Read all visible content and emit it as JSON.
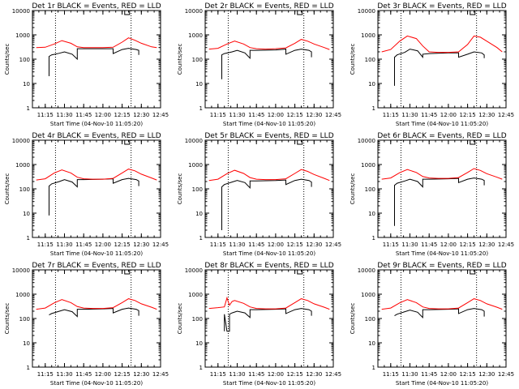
{
  "figure": {
    "colors": {
      "events": "#000000",
      "lld": "#ff0000",
      "axes": "#000000",
      "background": "#ffffff"
    }
  },
  "chart_data": [
    {
      "type": "line",
      "title": "Det 1r BLACK = Events, RED = LLD",
      "xlabel": "Start Time (04-Nov-10 11:05:20)",
      "ylabel": "Counts/sec",
      "y_scale": "log",
      "ylim": [
        1,
        10000
      ],
      "x_ticks": [
        "11:15",
        "11:30",
        "11:45",
        "12:00",
        "12:15",
        "12:30",
        "12:45"
      ],
      "y_ticks": [
        "1",
        "10",
        "100",
        "1000",
        "10000"
      ],
      "vlines": [
        "11:23",
        "12:22"
      ],
      "series": [
        {
          "name": "Events",
          "x": [
            "11:18",
            "11:18",
            "11:20",
            "11:26",
            "11:30",
            "11:36",
            "11:40",
            "11:40",
            "11:45",
            "12:00",
            "12:08",
            "12:08",
            "12:15",
            "12:20",
            "12:26",
            "12:28",
            "12:28"
          ],
          "y": [
            20,
            130,
            150,
            175,
            200,
            160,
            100,
            270,
            270,
            270,
            270,
            170,
            250,
            280,
            250,
            230,
            150
          ]
        },
        {
          "name": "LLD",
          "x": [
            "11:08",
            "11:15",
            "11:22",
            "11:28",
            "11:35",
            "11:40",
            "11:45",
            "11:52",
            "12:00",
            "12:08",
            "12:15",
            "12:20",
            "12:25",
            "12:30",
            "12:38",
            "12:42"
          ],
          "y": [
            300,
            310,
            420,
            580,
            450,
            320,
            300,
            300,
            300,
            310,
            500,
            750,
            600,
            450,
            320,
            300
          ]
        }
      ]
    },
    {
      "type": "line",
      "title": "Det 2r BLACK = Events, RED = LLD",
      "xlabel": "Start Time (04-Nov-10 11:05:20)",
      "ylabel": "Counts/sec",
      "y_scale": "log",
      "ylim": [
        1,
        10000
      ],
      "x_ticks": [
        "11:15",
        "11:30",
        "11:45",
        "12:00",
        "12:15",
        "12:30",
        "12:45"
      ],
      "y_ticks": [
        "1",
        "10",
        "100",
        "1000",
        "10000"
      ],
      "vlines": [
        "11:23",
        "12:22"
      ],
      "series": [
        {
          "name": "Events",
          "x": [
            "11:18",
            "11:18",
            "11:20",
            "11:26",
            "11:30",
            "11:36",
            "11:40",
            "11:40",
            "11:45",
            "12:00",
            "12:08",
            "12:08",
            "12:15",
            "12:20",
            "12:26",
            "12:28",
            "12:28"
          ],
          "y": [
            15,
            150,
            170,
            200,
            230,
            180,
            110,
            230,
            230,
            240,
            260,
            160,
            230,
            260,
            230,
            200,
            120
          ]
        },
        {
          "name": "LLD",
          "x": [
            "11:08",
            "11:15",
            "11:22",
            "11:28",
            "11:35",
            "11:40",
            "11:45",
            "11:52",
            "12:00",
            "12:08",
            "12:15",
            "12:20",
            "12:25",
            "12:30",
            "12:38",
            "12:42"
          ],
          "y": [
            260,
            280,
            420,
            560,
            420,
            300,
            270,
            260,
            270,
            290,
            450,
            650,
            550,
            420,
            300,
            250
          ]
        }
      ]
    },
    {
      "type": "line",
      "title": "Det 3r BLACK = Events, RED = LLD",
      "xlabel": "Start Time (04-Nov-10 11:05:20)",
      "ylabel": "Counts/sec",
      "y_scale": "log",
      "ylim": [
        1,
        10000
      ],
      "x_ticks": [
        "11:15",
        "11:30",
        "11:45",
        "12:00",
        "12:15",
        "12:30",
        "12:45"
      ],
      "y_ticks": [
        "1",
        "10",
        "100",
        "1000",
        "10000"
      ],
      "vlines": [
        "11:23",
        "12:22"
      ],
      "series": [
        {
          "name": "Events",
          "x": [
            "11:18",
            "11:18",
            "11:20",
            "11:26",
            "11:30",
            "11:36",
            "11:40",
            "11:40",
            "11:45",
            "12:00",
            "12:08",
            "12:08",
            "12:15",
            "12:20",
            "12:26",
            "12:28",
            "12:28"
          ],
          "y": [
            8,
            120,
            150,
            190,
            260,
            220,
            120,
            160,
            170,
            180,
            180,
            120,
            160,
            200,
            180,
            150,
            110
          ]
        },
        {
          "name": "LLD",
          "x": [
            "11:08",
            "11:15",
            "11:22",
            "11:28",
            "11:35",
            "11:40",
            "11:45",
            "11:52",
            "12:00",
            "12:08",
            "12:15",
            "12:20",
            "12:25",
            "12:30",
            "12:38",
            "12:42"
          ],
          "y": [
            200,
            250,
            550,
            900,
            700,
            350,
            200,
            190,
            190,
            200,
            400,
            900,
            800,
            550,
            300,
            200
          ]
        }
      ]
    },
    {
      "type": "line",
      "title": "Det 4r BLACK = Events, RED = LLD",
      "xlabel": "Start Time (04-Nov-10 11:05:20)",
      "ylabel": "Counts/sec",
      "y_scale": "log",
      "ylim": [
        1,
        10000
      ],
      "x_ticks": [
        "11:15",
        "11:30",
        "11:45",
        "12:00",
        "12:15",
        "12:30",
        "12:45"
      ],
      "y_ticks": [
        "1",
        "10",
        "100",
        "1000",
        "10000"
      ],
      "vlines": [
        "11:23",
        "12:22"
      ],
      "series": [
        {
          "name": "Events",
          "x": [
            "11:18",
            "11:18",
            "11:20",
            "11:26",
            "11:30",
            "11:36",
            "11:40",
            "11:40",
            "11:45",
            "12:00",
            "12:08",
            "12:08",
            "12:15",
            "12:20",
            "12:26",
            "12:28",
            "12:28"
          ],
          "y": [
            8,
            130,
            160,
            200,
            240,
            190,
            120,
            240,
            240,
            250,
            260,
            170,
            240,
            270,
            240,
            210,
            130
          ]
        },
        {
          "name": "LLD",
          "x": [
            "11:08",
            "11:15",
            "11:22",
            "11:28",
            "11:35",
            "11:40",
            "11:45",
            "11:52",
            "12:00",
            "12:08",
            "12:15",
            "12:20",
            "12:25",
            "12:30",
            "12:38",
            "12:42"
          ],
          "y": [
            230,
            260,
            450,
            600,
            450,
            300,
            260,
            250,
            250,
            270,
            450,
            650,
            550,
            400,
            280,
            230
          ]
        }
      ]
    },
    {
      "type": "line",
      "title": "Det 5r BLACK = Events, RED = LLD",
      "xlabel": "Start Time (04-Nov-10 11:05:20)",
      "ylabel": "Counts/sec",
      "y_scale": "log",
      "ylim": [
        1,
        10000
      ],
      "x_ticks": [
        "11:15",
        "11:30",
        "11:45",
        "12:00",
        "12:15",
        "12:30",
        "12:45"
      ],
      "y_ticks": [
        "1",
        "10",
        "100",
        "1000",
        "10000"
      ],
      "vlines": [
        "11:23",
        "12:22"
      ],
      "series": [
        {
          "name": "Events",
          "x": [
            "11:18",
            "11:18",
            "11:20",
            "11:26",
            "11:30",
            "11:36",
            "11:40",
            "11:40",
            "11:45",
            "12:00",
            "12:08",
            "12:08",
            "12:15",
            "12:20",
            "12:26",
            "12:28",
            "12:28"
          ],
          "y": [
            2,
            120,
            150,
            190,
            220,
            180,
            110,
            210,
            210,
            220,
            230,
            150,
            220,
            250,
            220,
            190,
            120
          ]
        },
        {
          "name": "LLD",
          "x": [
            "11:08",
            "11:15",
            "11:22",
            "11:28",
            "11:35",
            "11:40",
            "11:45",
            "11:52",
            "12:00",
            "12:08",
            "12:15",
            "12:20",
            "12:25",
            "12:30",
            "12:38",
            "12:42"
          ],
          "y": [
            220,
            250,
            420,
            580,
            430,
            290,
            250,
            240,
            240,
            260,
            430,
            620,
            520,
            390,
            270,
            220
          ]
        }
      ]
    },
    {
      "type": "line",
      "title": "Det 6r BLACK = Events, RED = LLD",
      "xlabel": "Start Time (04-Nov-10 11:05:20)",
      "ylabel": "Counts/sec",
      "y_scale": "log",
      "ylim": [
        1,
        10000
      ],
      "x_ticks": [
        "11:15",
        "11:30",
        "11:45",
        "12:00",
        "12:15",
        "12:30",
        "12:45"
      ],
      "y_ticks": [
        "1",
        "10",
        "100",
        "1000",
        "10000"
      ],
      "vlines": [
        "11:23",
        "12:22"
      ],
      "series": [
        {
          "name": "Events",
          "x": [
            "11:18",
            "11:18",
            "11:20",
            "11:26",
            "11:30",
            "11:36",
            "11:40",
            "11:40",
            "11:45",
            "12:00",
            "12:08",
            "12:08",
            "12:15",
            "12:20",
            "12:26",
            "12:28",
            "12:28"
          ],
          "y": [
            3,
            140,
            170,
            210,
            250,
            200,
            120,
            250,
            250,
            260,
            270,
            180,
            250,
            280,
            250,
            220,
            140
          ]
        },
        {
          "name": "LLD",
          "x": [
            "11:08",
            "11:15",
            "11:22",
            "11:28",
            "11:35",
            "11:40",
            "11:45",
            "11:52",
            "12:00",
            "12:08",
            "12:15",
            "12:20",
            "12:25",
            "12:30",
            "12:38",
            "12:42"
          ],
          "y": [
            250,
            280,
            460,
            620,
            470,
            320,
            280,
            270,
            270,
            290,
            470,
            680,
            570,
            420,
            300,
            250
          ]
        }
      ]
    },
    {
      "type": "line",
      "title": "Det 7r BLACK = Events, RED = LLD",
      "xlabel": "Start Time (04-Nov-10 11:05:20)",
      "ylabel": "Counts/sec",
      "y_scale": "log",
      "ylim": [
        1,
        10000
      ],
      "x_ticks": [
        "11:15",
        "11:30",
        "11:45",
        "12:00",
        "12:15",
        "12:30",
        "12:45"
      ],
      "y_ticks": [
        "1",
        "10",
        "100",
        "1000",
        "10000"
      ],
      "vlines": [
        "11:23",
        "12:22"
      ],
      "series": [
        {
          "name": "Events",
          "x": [
            "11:18",
            "11:20",
            "11:26",
            "11:30",
            "11:36",
            "11:40",
            "11:40",
            "11:45",
            "12:00",
            "12:08",
            "12:08",
            "12:15",
            "12:20",
            "12:26",
            "12:28",
            "12:28"
          ],
          "y": [
            140,
            160,
            200,
            230,
            190,
            120,
            240,
            240,
            250,
            260,
            170,
            240,
            270,
            240,
            210,
            130
          ]
        },
        {
          "name": "LLD",
          "x": [
            "11:08",
            "11:15",
            "11:22",
            "11:28",
            "11:35",
            "11:40",
            "11:45",
            "11:52",
            "12:00",
            "12:08",
            "12:15",
            "12:20",
            "12:25",
            "12:30",
            "12:38",
            "12:42"
          ],
          "y": [
            240,
            270,
            440,
            600,
            450,
            310,
            270,
            260,
            260,
            280,
            450,
            650,
            550,
            400,
            290,
            240
          ]
        }
      ]
    },
    {
      "type": "line",
      "title": "Det 8r BLACK = Events, RED = LLD",
      "xlabel": "Start Time (04-Nov-10 11:05:20)",
      "ylabel": "Counts/sec",
      "y_scale": "log",
      "ylim": [
        1,
        10000
      ],
      "x_ticks": [
        "11:15",
        "11:30",
        "11:45",
        "12:00",
        "12:15",
        "12:30",
        "12:45"
      ],
      "y_ticks": [
        "1",
        "10",
        "100",
        "1000",
        "10000"
      ],
      "vlines": [
        "11:23",
        "12:22"
      ],
      "series": [
        {
          "name": "Events",
          "x": [
            "11:20",
            "11:20",
            "11:22",
            "11:24",
            "11:24",
            "11:26",
            "11:30",
            "11:36",
            "11:40",
            "11:40",
            "11:45",
            "12:00",
            "12:08",
            "12:08",
            "12:15",
            "12:20",
            "12:26",
            "12:28",
            "12:28"
          ],
          "y": [
            30,
            150,
            30,
            30,
            150,
            170,
            200,
            170,
            110,
            230,
            230,
            240,
            250,
            160,
            230,
            260,
            230,
            200,
            130
          ]
        },
        {
          "name": "LLD",
          "x": [
            "11:08",
            "11:15",
            "11:20",
            "11:22",
            "11:24",
            "11:26",
            "11:28",
            "11:35",
            "11:40",
            "11:45",
            "11:52",
            "12:00",
            "12:08",
            "12:15",
            "12:20",
            "12:25",
            "12:30",
            "12:38",
            "12:42"
          ],
          "y": [
            260,
            280,
            300,
            700,
            350,
            500,
            550,
            420,
            300,
            260,
            250,
            250,
            270,
            450,
            650,
            550,
            400,
            290,
            240
          ]
        }
      ]
    },
    {
      "type": "line",
      "title": "Det 9r BLACK = Events, RED = LLD",
      "xlabel": "Start Time (04-Nov-10 11:05:20)",
      "ylabel": "Counts/sec",
      "y_scale": "log",
      "ylim": [
        1,
        10000
      ],
      "x_ticks": [
        "11:15",
        "11:30",
        "11:45",
        "12:00",
        "12:15",
        "12:30",
        "12:45"
      ],
      "y_ticks": [
        "1",
        "10",
        "100",
        "1000",
        "10000"
      ],
      "vlines": [
        "11:23",
        "12:22"
      ],
      "series": [
        {
          "name": "Events",
          "x": [
            "11:18",
            "11:20",
            "11:26",
            "11:30",
            "11:36",
            "11:40",
            "11:40",
            "11:45",
            "12:00",
            "12:08",
            "12:08",
            "12:15",
            "12:20",
            "12:26",
            "12:28",
            "12:28"
          ],
          "y": [
            130,
            150,
            190,
            220,
            180,
            110,
            230,
            230,
            240,
            250,
            160,
            230,
            260,
            230,
            200,
            120
          ]
        },
        {
          "name": "LLD",
          "x": [
            "11:08",
            "11:15",
            "11:22",
            "11:28",
            "11:35",
            "11:40",
            "11:45",
            "11:52",
            "12:00",
            "12:08",
            "12:15",
            "12:20",
            "12:25",
            "12:30",
            "12:38",
            "12:42"
          ],
          "y": [
            240,
            270,
            440,
            600,
            450,
            300,
            260,
            250,
            250,
            270,
            450,
            650,
            550,
            400,
            290,
            240
          ]
        }
      ]
    }
  ]
}
